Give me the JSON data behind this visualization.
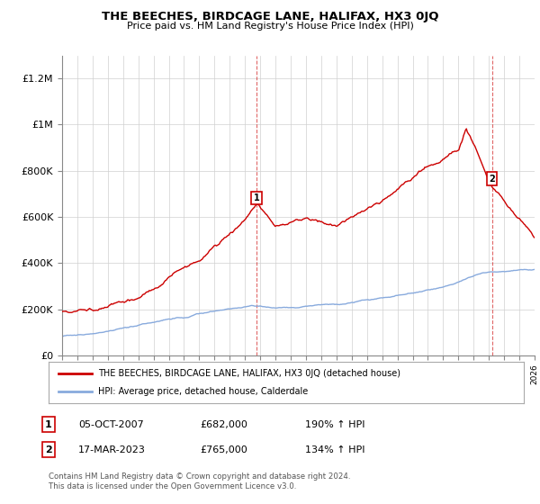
{
  "title": "THE BEECHES, BIRDCAGE LANE, HALIFAX, HX3 0JQ",
  "subtitle": "Price paid vs. HM Land Registry's House Price Index (HPI)",
  "ylim": [
    0,
    1300000
  ],
  "yticks": [
    0,
    200000,
    400000,
    600000,
    800000,
    1000000,
    1200000
  ],
  "ytick_labels": [
    "£0",
    "£200K",
    "£400K",
    "£600K",
    "£800K",
    "£1M",
    "£1.2M"
  ],
  "hpi_color": "#88aadd",
  "price_color": "#cc0000",
  "ann1_x": 2007.75,
  "ann1_price": 682000,
  "ann2_x": 2023.2,
  "ann2_price": 765000,
  "ann1_text": "05-OCT-2007",
  "ann1_amount": "£682,000",
  "ann1_pct": "190% ↑ HPI",
  "ann2_text": "17-MAR-2023",
  "ann2_amount": "£765,000",
  "ann2_pct": "134% ↑ HPI",
  "legend_price_label": "THE BEECHES, BIRDCAGE LANE, HALIFAX, HX3 0JQ (detached house)",
  "legend_hpi_label": "HPI: Average price, detached house, Calderdale",
  "footer": "Contains HM Land Registry data © Crown copyright and database right 2024.\nThis data is licensed under the Open Government Licence v3.0.",
  "xmin": 1995,
  "xmax": 2026
}
